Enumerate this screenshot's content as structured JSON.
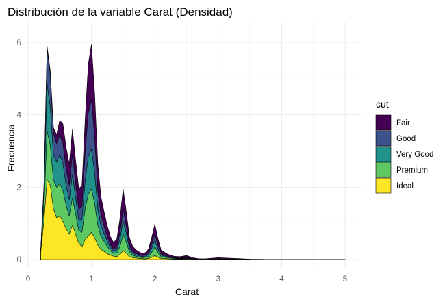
{
  "chart_data": {
    "type": "area",
    "stacked": true,
    "title": "Distribución de la variable Carat (Densidad)",
    "xlabel": "Carat",
    "ylabel": "Frecuencia",
    "xlim": [
      0,
      5
    ],
    "ylim": [
      0,
      6.5
    ],
    "x_ticks": [
      "0",
      "1",
      "2",
      "3",
      "4",
      "5"
    ],
    "y_ticks": [
      "0",
      "2",
      "4",
      "6"
    ],
    "grid": true,
    "legend": {
      "title": "cut",
      "position": "right"
    },
    "x": [
      0.2,
      0.25,
      0.3,
      0.35,
      0.4,
      0.45,
      0.5,
      0.55,
      0.6,
      0.65,
      0.7,
      0.75,
      0.8,
      0.85,
      0.9,
      0.95,
      1.0,
      1.05,
      1.1,
      1.15,
      1.2,
      1.25,
      1.3,
      1.35,
      1.4,
      1.45,
      1.5,
      1.55,
      1.6,
      1.65,
      1.7,
      1.75,
      1.8,
      1.85,
      1.9,
      1.95,
      2.0,
      2.05,
      2.1,
      2.2,
      2.3,
      2.4,
      2.5,
      2.6,
      2.7,
      2.8,
      3.0,
      3.5,
      4.0,
      5.0
    ],
    "series": [
      {
        "name": "Ideal",
        "color": "#fde725",
        "values": [
          0.2,
          1.05,
          2.2,
          2.05,
          1.4,
          1.15,
          1.2,
          1.05,
          0.85,
          0.7,
          0.95,
          0.7,
          0.45,
          0.35,
          0.55,
          0.65,
          0.75,
          0.6,
          0.4,
          0.28,
          0.22,
          0.16,
          0.12,
          0.09,
          0.08,
          0.14,
          0.25,
          0.18,
          0.08,
          0.05,
          0.04,
          0.03,
          0.02,
          0.02,
          0.03,
          0.06,
          0.11,
          0.06,
          0.03,
          0.02,
          0.01,
          0.01,
          0.01,
          0.0,
          0.0,
          0.0,
          0.0,
          0.0,
          0.0,
          0.0
        ]
      },
      {
        "name": "Premium",
        "color": "#5ec962",
        "values": [
          0.05,
          0.35,
          1.35,
          1.1,
          0.8,
          0.85,
          0.9,
          0.85,
          0.65,
          0.5,
          0.75,
          0.55,
          0.35,
          0.4,
          0.85,
          1.15,
          1.2,
          0.95,
          0.55,
          0.35,
          0.28,
          0.2,
          0.12,
          0.08,
          0.1,
          0.22,
          0.45,
          0.3,
          0.12,
          0.07,
          0.05,
          0.04,
          0.03,
          0.04,
          0.06,
          0.14,
          0.24,
          0.13,
          0.05,
          0.03,
          0.02,
          0.01,
          0.02,
          0.01,
          0.0,
          0.0,
          0.01,
          0.0,
          0.0,
          0.0
        ]
      },
      {
        "name": "Very Good",
        "color": "#21918c",
        "values": [
          0.03,
          0.4,
          1.3,
          1.05,
          0.7,
          0.7,
          0.8,
          0.75,
          0.55,
          0.45,
          0.65,
          0.45,
          0.3,
          0.35,
          0.75,
          1.05,
          1.1,
          0.85,
          0.45,
          0.3,
          0.22,
          0.14,
          0.09,
          0.06,
          0.09,
          0.2,
          0.38,
          0.24,
          0.1,
          0.06,
          0.04,
          0.03,
          0.03,
          0.03,
          0.05,
          0.11,
          0.18,
          0.1,
          0.04,
          0.02,
          0.01,
          0.01,
          0.01,
          0.01,
          0.0,
          0.0,
          0.01,
          0.0,
          0.0,
          0.0
        ]
      },
      {
        "name": "Good",
        "color": "#3b528b",
        "values": [
          0.01,
          0.2,
          0.95,
          0.9,
          0.6,
          0.5,
          0.55,
          0.55,
          0.45,
          0.4,
          0.55,
          0.4,
          0.3,
          0.35,
          0.8,
          1.2,
          1.35,
          1.0,
          0.5,
          0.3,
          0.2,
          0.13,
          0.08,
          0.06,
          0.08,
          0.18,
          0.32,
          0.2,
          0.08,
          0.05,
          0.04,
          0.03,
          0.03,
          0.03,
          0.05,
          0.1,
          0.17,
          0.1,
          0.04,
          0.02,
          0.01,
          0.01,
          0.01,
          0.0,
          0.0,
          0.0,
          0.0,
          0.0,
          0.0,
          0.0
        ]
      },
      {
        "name": "Fair",
        "color": "#440154",
        "values": [
          0.01,
          0.05,
          0.1,
          0.12,
          0.15,
          0.25,
          0.4,
          0.55,
          0.6,
          0.6,
          0.7,
          0.65,
          0.55,
          0.6,
          0.9,
          1.35,
          1.55,
          1.2,
          0.75,
          0.5,
          0.4,
          0.3,
          0.22,
          0.18,
          0.22,
          0.4,
          0.55,
          0.4,
          0.22,
          0.14,
          0.1,
          0.08,
          0.06,
          0.07,
          0.1,
          0.2,
          0.28,
          0.18,
          0.1,
          0.06,
          0.04,
          0.04,
          0.06,
          0.03,
          0.02,
          0.02,
          0.03,
          0.01,
          0.0,
          0.0
        ]
      }
    ]
  }
}
